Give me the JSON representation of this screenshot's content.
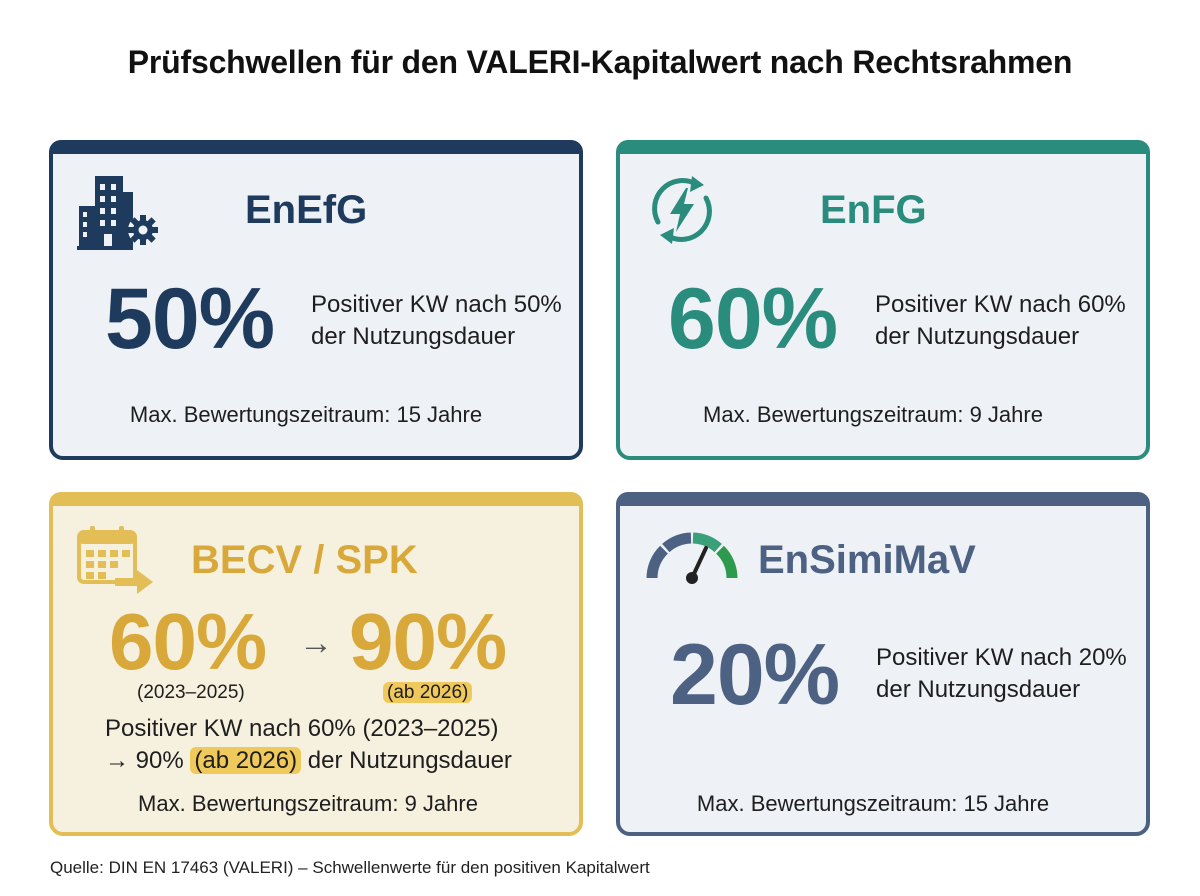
{
  "title": "Prüfschwellen für den VALERI-Kapitalwert nach Rechtsrahmen",
  "cards": {
    "enefg": {
      "name": "EnEfG",
      "value": "50%",
      "desc_line1": "Positiver KW nach 50%",
      "desc_line2": "der Nutzungsdauer",
      "period": "Max. Bewertungszeitraum: 15 Jahre",
      "icon": "building-gear-icon",
      "color": "#1e3a5c"
    },
    "enfg": {
      "name": "EnFG",
      "value": "60%",
      "desc_line1": "Positiver KW nach 60%",
      "desc_line2": "der Nutzungsdauer",
      "period": "Max. Bewertungszeitraum: 9 Jahre",
      "icon": "energy-cycle-icon",
      "color": "#2a8c7c"
    },
    "becv": {
      "name": "BECV / SPK",
      "value_from": "60%",
      "arrow": "→",
      "value_to": "90%",
      "label_from": "(2023–2025)",
      "label_to": "(ab 2026)",
      "desc_line1": "Positiver KW nach 60% (2023–2025)",
      "desc_line2_pre": "→ 90%",
      "desc_line2_hl": "(ab 2026)",
      "desc_line2_post": "der Nutzungsdauer",
      "period": "Max. Bewertungszeitraum: 9 Jahre",
      "icon": "calendar-arrow-icon",
      "color": "#d8a93a"
    },
    "ensimimav": {
      "name": "EnSimiMaV",
      "value": "20%",
      "desc_line1": "Positiver KW nach 20%",
      "desc_line2": "der Nutzungsdauer",
      "period": "Max. Bewertungszeitraum: 15 Jahre",
      "icon": "gauge-icon",
      "color": "#4d6183"
    }
  },
  "source": "Quelle: DIN EN 17463 (VALERI) – Schwellenwerte für den positiven Kapitalwert"
}
